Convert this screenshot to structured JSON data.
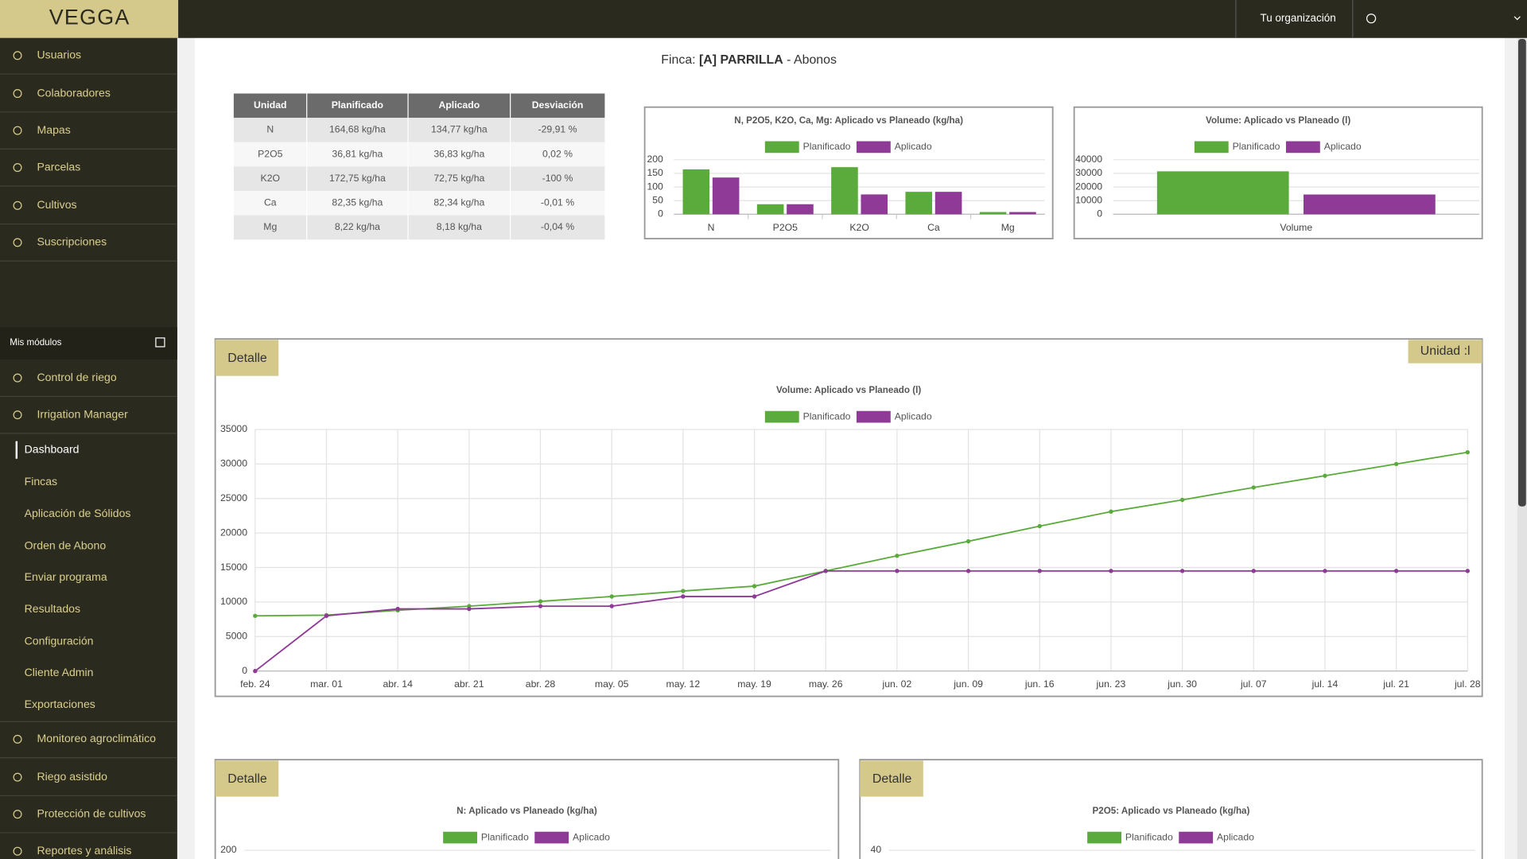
{
  "app": {
    "logo": "VEGGA",
    "org": "Tu organización"
  },
  "sidebar": {
    "menu": [
      "Usuarios",
      "Colaboradores",
      "Mapas",
      "Parcelas",
      "Cultivos",
      "Suscripciones"
    ],
    "modules_title": "Mis módulos",
    "modules": [
      "Control de riego",
      "Irrigation Manager"
    ],
    "submenu": [
      "Dashboard",
      "Fincas",
      "Aplicación de Sólidos",
      "Orden de Abono",
      "Enviar programa",
      "Resultados",
      "Configuración",
      "Cliente Admin",
      "Exportaciones"
    ],
    "more_modules": [
      "Monitoreo agroclimático",
      "Riego asistido",
      "Protección de cultivos",
      "Reportes y análisis"
    ]
  },
  "page": {
    "prefix": "Finca:",
    "farm": "[A] PARRILLA",
    "suffix": "- Abonos",
    "detail_label": "Detalle",
    "unit_label": "Unidad :l"
  },
  "table": {
    "header": [
      "Unidad",
      "Planificado",
      "Aplicado",
      "Desviación"
    ],
    "rows": [
      [
        "N",
        "164,68 kg/ha",
        "134,77 kg/ha",
        "-29,91 %"
      ],
      [
        "P2O5",
        "36,81 kg/ha",
        "36,83 kg/ha",
        "0,02 %"
      ],
      [
        "K2O",
        "172,75 kg/ha",
        "72,75 kg/ha",
        "-100 %"
      ],
      [
        "Ca",
        "82,35 kg/ha",
        "82,34 kg/ha",
        "-0,01 %"
      ],
      [
        "Mg",
        "8,22 kg/ha",
        "8,18 kg/ha",
        "-0,04 %"
      ]
    ]
  },
  "chart_data": [
    {
      "type": "bar",
      "title": "N, P2O5, K2O, Ca, Mg: Aplicado vs Planeado (kg/ha)",
      "categories": [
        "N",
        "P2O5",
        "K2O",
        "Ca",
        "Mg"
      ],
      "series": [
        {
          "name": "Planificado",
          "color": "#5aab3c",
          "values": [
            164.68,
            36.81,
            172.75,
            82.35,
            8.22
          ]
        },
        {
          "name": "Aplicado",
          "color": "#8e3a96",
          "values": [
            134.77,
            36.83,
            72.75,
            82.34,
            8.18
          ]
        }
      ],
      "ylim": [
        0,
        200
      ],
      "yticks": [
        0,
        50,
        100,
        150,
        200
      ]
    },
    {
      "type": "bar",
      "title": "Volume: Aplicado vs Planeado (l)",
      "categories": [
        "Volume"
      ],
      "series": [
        {
          "name": "Planificado",
          "color": "#5aab3c",
          "values": [
            31500
          ]
        },
        {
          "name": "Aplicado",
          "color": "#8e3a96",
          "values": [
            14500
          ]
        }
      ],
      "ylim": [
        0,
        40000
      ],
      "yticks": [
        0,
        10000,
        20000,
        30000,
        40000
      ]
    },
    {
      "type": "line",
      "title": "Volume: Aplicado vs Planeado (l)",
      "categories": [
        "feb. 24",
        "mar. 01",
        "abr. 14",
        "abr. 21",
        "abr. 28",
        "may. 05",
        "may. 12",
        "may. 19",
        "may. 26",
        "jun. 02",
        "jun. 09",
        "jun. 16",
        "jun. 23",
        "jun. 30",
        "jul. 07",
        "jul. 14",
        "jul. 21",
        "jul. 28"
      ],
      "series": [
        {
          "name": "Planificado",
          "color": "#5aab3c",
          "values": [
            8000,
            8100,
            8800,
            9400,
            10100,
            10800,
            11600,
            12300,
            14500,
            16700,
            18800,
            21000,
            23100,
            24800,
            26600,
            28300,
            30000,
            31700
          ]
        },
        {
          "name": "Aplicado",
          "color": "#8e3a96",
          "values": [
            0,
            8000,
            9000,
            9000,
            9400,
            9400,
            10800,
            10800,
            14500,
            14500,
            14500,
            14500,
            14500,
            14500,
            14500,
            14500,
            14500,
            14500
          ]
        }
      ],
      "ylim": [
        0,
        35000
      ],
      "yticks": [
        0,
        5000,
        10000,
        15000,
        20000,
        25000,
        30000,
        35000
      ],
      "grid": true
    },
    {
      "type": "line",
      "title": "N: Aplicado vs Planeado (kg/ha)",
      "series": [
        {
          "name": "Planificado",
          "color": "#5aab3c"
        },
        {
          "name": "Aplicado",
          "color": "#8e3a96"
        }
      ],
      "yticks": [
        200
      ]
    },
    {
      "type": "line",
      "title": "P2O5: Aplicado vs Planeado (kg/ha)",
      "series": [
        {
          "name": "Planificado",
          "color": "#5aab3c"
        },
        {
          "name": "Aplicado",
          "color": "#8e3a96"
        }
      ],
      "yticks": [
        40
      ]
    }
  ]
}
